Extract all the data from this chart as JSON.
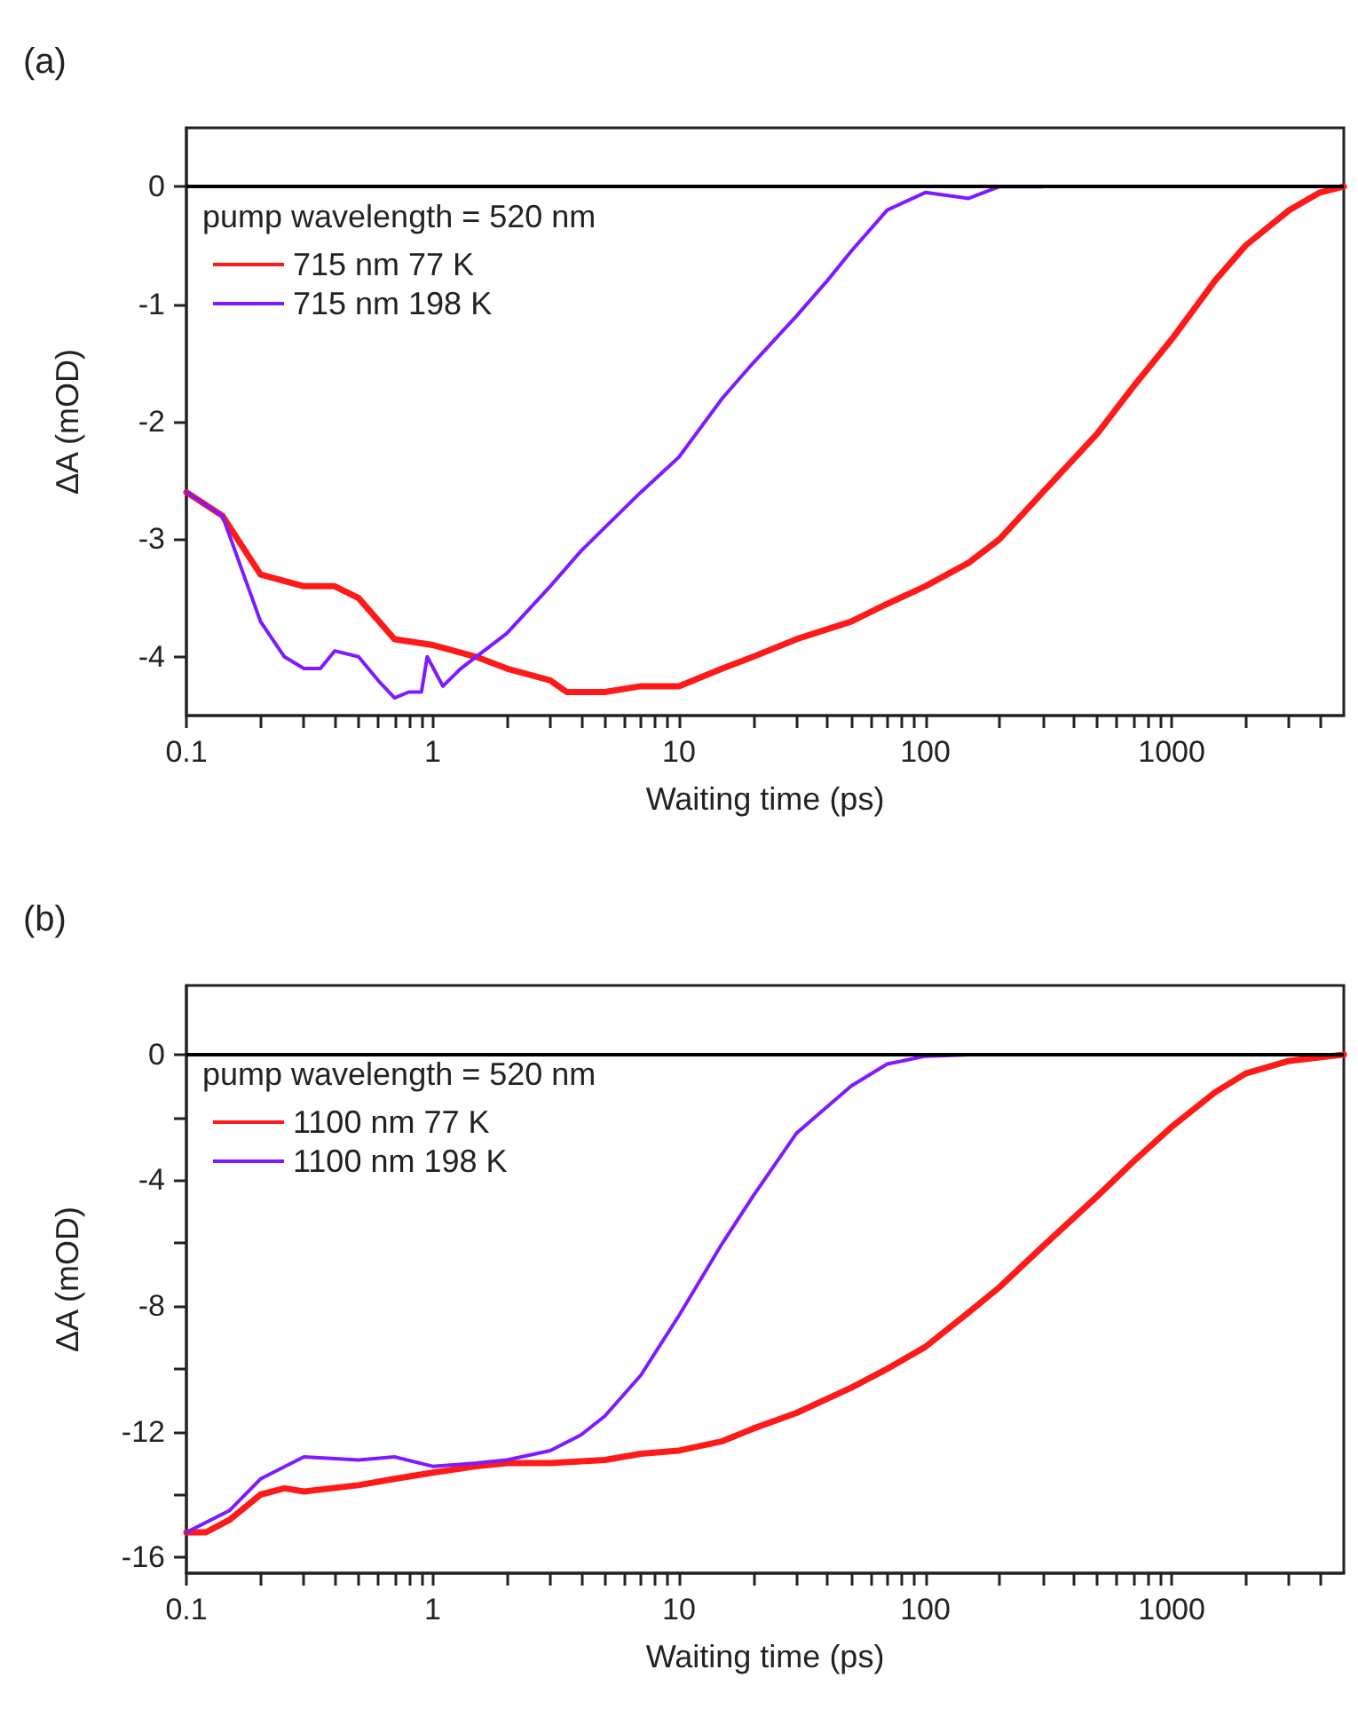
{
  "chart_data": [
    {
      "type": "line",
      "title": "(a)",
      "xlabel": "Waiting time (ps)",
      "ylabel": "ΔA (mOD)",
      "legend_title": "pump wavelength = 520 nm",
      "legend": "top left",
      "log": "x",
      "grid": false,
      "xlim": [
        0.1,
        5000
      ],
      "ylim": [
        -4.5,
        0.5
      ],
      "yticks": [
        0,
        -1,
        -2,
        -3,
        -4
      ],
      "xticks": [
        0.1,
        {
          "value": 0.2,
          "label": null
        },
        {
          "value": 0.3,
          "label": null
        },
        {
          "value": 0.4,
          "label": null
        },
        {
          "value": 0.5,
          "label": null
        },
        {
          "value": 0.6,
          "label": null
        },
        {
          "value": 0.7,
          "label": null
        },
        {
          "value": 0.8,
          "label": null
        },
        {
          "value": 0.9,
          "label": null
        },
        1,
        {
          "value": 2,
          "label": null
        },
        {
          "value": 3,
          "label": null
        },
        {
          "value": 4,
          "label": null
        },
        {
          "value": 5,
          "label": null
        },
        {
          "value": 6,
          "label": null
        },
        {
          "value": 7,
          "label": null
        },
        {
          "value": 8,
          "label": null
        },
        {
          "value": 9,
          "label": null
        },
        10,
        {
          "value": 20,
          "label": null
        },
        {
          "value": 30,
          "label": null
        },
        {
          "value": 40,
          "label": null
        },
        {
          "value": 50,
          "label": null
        },
        {
          "value": 60,
          "label": null
        },
        {
          "value": 70,
          "label": null
        },
        {
          "value": 80,
          "label": null
        },
        {
          "value": 90,
          "label": null
        },
        100,
        {
          "value": 200,
          "label": null
        },
        {
          "value": 300,
          "label": null
        },
        {
          "value": 400,
          "label": null
        },
        {
          "value": 500,
          "label": null
        },
        {
          "value": 600,
          "label": null
        },
        {
          "value": 700,
          "label": null
        },
        {
          "value": 800,
          "label": null
        },
        {
          "value": 900,
          "label": null
        },
        1000,
        {
          "value": 2000,
          "label": null
        },
        {
          "value": 3000,
          "label": null
        },
        {
          "value": 4000,
          "label": null
        }
      ],
      "ref_lines": [
        {
          "axis": "y",
          "value": 0,
          "color": "#000000"
        }
      ],
      "series": [
        {
          "name": "715 nm 77 K",
          "color": "#ff1a1a",
          "x": [
            0.1,
            0.14,
            0.2,
            0.3,
            0.4,
            0.5,
            0.7,
            1,
            1.5,
            2,
            3,
            3.5,
            5,
            7,
            10,
            15,
            20,
            30,
            50,
            70,
            100,
            150,
            200,
            300,
            500,
            700,
            1000,
            1500,
            2000,
            3000,
            4000,
            5000
          ],
          "values": [
            -2.6,
            -2.8,
            -3.3,
            -3.4,
            -3.4,
            -3.5,
            -3.85,
            -3.9,
            -4.0,
            -4.1,
            -4.2,
            -4.3,
            -4.3,
            -4.25,
            -4.25,
            -4.1,
            -4.0,
            -3.85,
            -3.7,
            -3.55,
            -3.4,
            -3.2,
            -3.0,
            -2.6,
            -2.1,
            -1.7,
            -1.3,
            -0.8,
            -0.5,
            -0.2,
            -0.05,
            0
          ]
        },
        {
          "name": "715 nm 198 K",
          "color": "#7f1aff",
          "x": [
            0.1,
            0.14,
            0.2,
            0.25,
            0.3,
            0.35,
            0.4,
            0.5,
            0.6,
            0.7,
            0.8,
            0.9,
            0.95,
            1.1,
            1.3,
            1.5,
            2,
            3,
            4,
            5,
            7,
            10,
            15,
            20,
            30,
            40,
            50,
            70,
            100,
            150,
            200,
            300
          ],
          "values": [
            -2.6,
            -2.8,
            -3.7,
            -4.0,
            -4.1,
            -4.1,
            -3.95,
            -4.0,
            -4.2,
            -4.35,
            -4.3,
            -4.3,
            -4.0,
            -4.25,
            -4.1,
            -4.0,
            -3.8,
            -3.4,
            -3.1,
            -2.9,
            -2.6,
            -2.3,
            -1.8,
            -1.5,
            -1.1,
            -0.8,
            -0.55,
            -0.2,
            -0.05,
            -0.1,
            0,
            0
          ]
        }
      ]
    },
    {
      "type": "line",
      "title": "(b)",
      "xlabel": "Waiting time (ps)",
      "ylabel": "ΔA (mOD)",
      "legend_title": "pump wavelength = 520 nm",
      "legend": "top left",
      "log": "x",
      "grid": false,
      "xlim": [
        0.1,
        5000
      ],
      "ylim": [
        -16.5,
        2.2
      ],
      "yticks": [
        0,
        {
          "value": -2,
          "label": null
        },
        -4,
        {
          "value": -6,
          "label": null
        },
        -8,
        {
          "value": -10,
          "label": null
        },
        -12,
        {
          "value": -14,
          "label": null
        },
        -16
      ],
      "xticks": [
        0.1,
        {
          "value": 0.2,
          "label": null
        },
        {
          "value": 0.3,
          "label": null
        },
        {
          "value": 0.4,
          "label": null
        },
        {
          "value": 0.5,
          "label": null
        },
        {
          "value": 0.6,
          "label": null
        },
        {
          "value": 0.7,
          "label": null
        },
        {
          "value": 0.8,
          "label": null
        },
        {
          "value": 0.9,
          "label": null
        },
        1,
        {
          "value": 2,
          "label": null
        },
        {
          "value": 3,
          "label": null
        },
        {
          "value": 4,
          "label": null
        },
        {
          "value": 5,
          "label": null
        },
        {
          "value": 6,
          "label": null
        },
        {
          "value": 7,
          "label": null
        },
        {
          "value": 8,
          "label": null
        },
        {
          "value": 9,
          "label": null
        },
        10,
        {
          "value": 20,
          "label": null
        },
        {
          "value": 30,
          "label": null
        },
        {
          "value": 40,
          "label": null
        },
        {
          "value": 50,
          "label": null
        },
        {
          "value": 60,
          "label": null
        },
        {
          "value": 70,
          "label": null
        },
        {
          "value": 80,
          "label": null
        },
        {
          "value": 90,
          "label": null
        },
        100,
        {
          "value": 200,
          "label": null
        },
        {
          "value": 300,
          "label": null
        },
        {
          "value": 400,
          "label": null
        },
        {
          "value": 500,
          "label": null
        },
        {
          "value": 600,
          "label": null
        },
        {
          "value": 700,
          "label": null
        },
        {
          "value": 800,
          "label": null
        },
        {
          "value": 900,
          "label": null
        },
        1000,
        {
          "value": 2000,
          "label": null
        },
        {
          "value": 3000,
          "label": null
        },
        {
          "value": 4000,
          "label": null
        }
      ],
      "ref_lines": [
        {
          "axis": "y",
          "value": 0,
          "color": "#000000"
        }
      ],
      "series": [
        {
          "name": "1100 nm 77 K",
          "color": "#ff1a1a",
          "x": [
            0.1,
            0.12,
            0.15,
            0.2,
            0.25,
            0.3,
            0.5,
            0.7,
            1,
            1.5,
            2,
            3,
            5,
            7,
            10,
            15,
            20,
            30,
            50,
            70,
            100,
            150,
            200,
            300,
            500,
            700,
            1000,
            1500,
            2000,
            3000,
            5000
          ],
          "values": [
            -15.2,
            -15.2,
            -14.8,
            -14.0,
            -13.8,
            -13.9,
            -13.7,
            -13.5,
            -13.3,
            -13.1,
            -13.0,
            -13.0,
            -12.9,
            -12.7,
            -12.6,
            -12.3,
            -11.9,
            -11.4,
            -10.6,
            -10.0,
            -9.3,
            -8.2,
            -7.4,
            -6.1,
            -4.5,
            -3.4,
            -2.3,
            -1.2,
            -0.6,
            -0.2,
            0
          ]
        },
        {
          "name": "1100 nm 198 K",
          "color": "#7f1aff",
          "x": [
            0.1,
            0.15,
            0.2,
            0.3,
            0.5,
            0.7,
            1,
            1.5,
            2,
            3,
            4,
            5,
            7,
            10,
            15,
            20,
            30,
            50,
            70,
            100,
            150,
            300
          ],
          "values": [
            -15.2,
            -14.5,
            -13.5,
            -12.8,
            -12.9,
            -12.8,
            -13.1,
            -13.0,
            -12.9,
            -12.6,
            -12.1,
            -11.5,
            -10.2,
            -8.3,
            -6.0,
            -4.5,
            -2.5,
            -1.0,
            -0.3,
            -0.05,
            0,
            0
          ]
        }
      ]
    }
  ]
}
